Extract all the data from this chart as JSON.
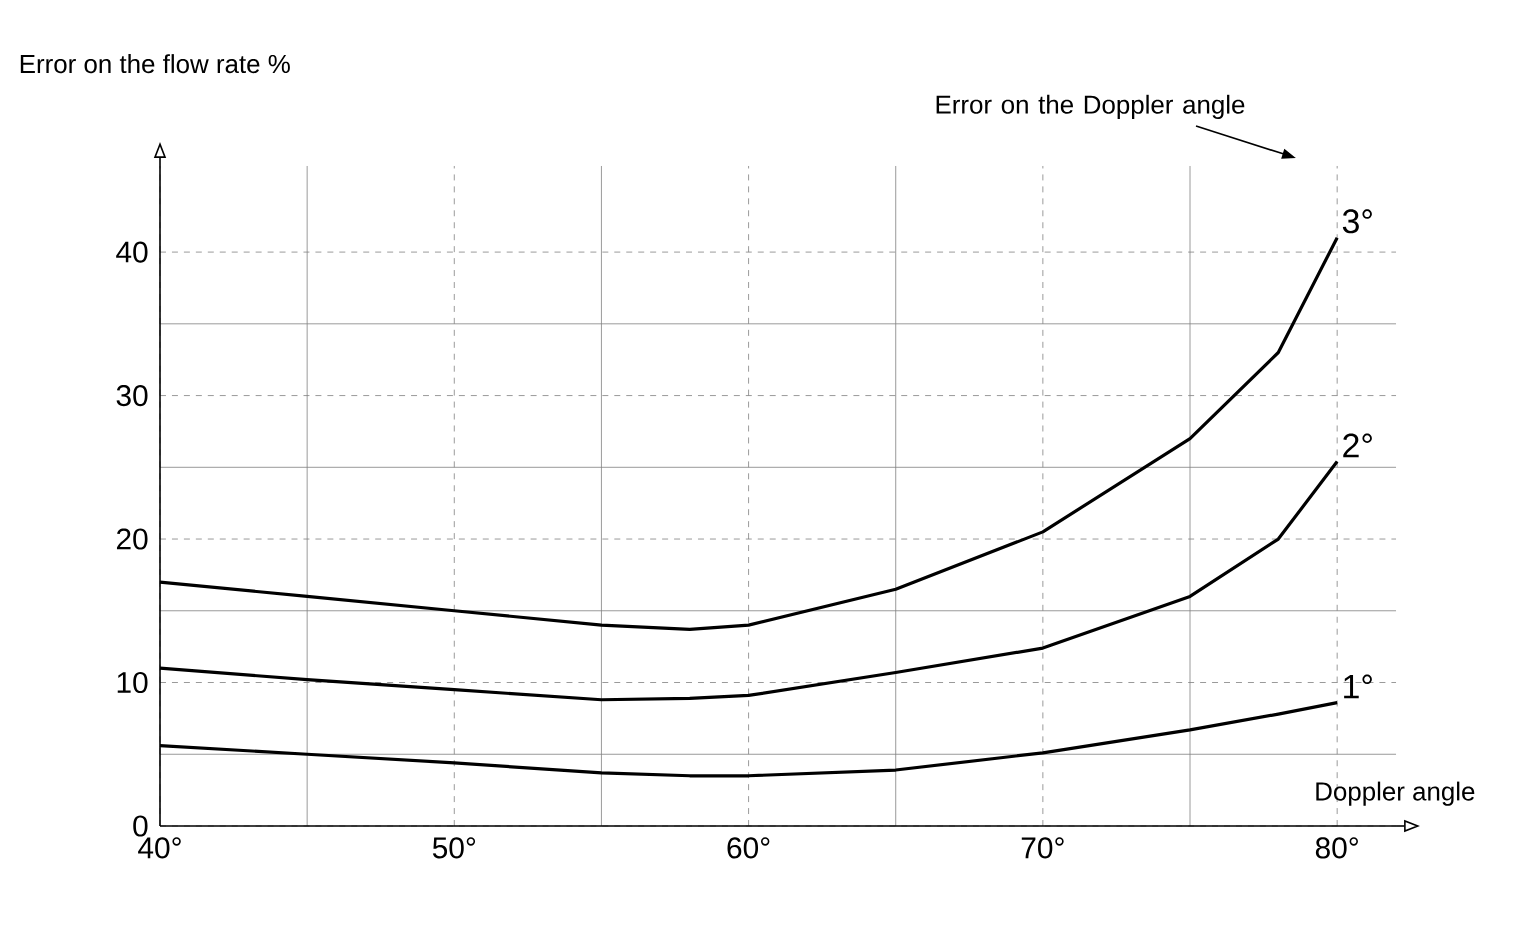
{
  "chart_data": {
    "type": "line",
    "ylabel": "Error on the flow rate %",
    "xlabel": "Doppler angle",
    "annotations": [
      "Error on the Doppler angle"
    ],
    "x": [
      40,
      45,
      50,
      55,
      58,
      60,
      65,
      70,
      75,
      78,
      80
    ],
    "series": [
      {
        "name": "3°",
        "color": "#000000",
        "values": [
          17,
          16,
          15,
          14,
          13.7,
          14,
          16.5,
          20.5,
          27,
          33,
          41
        ]
      },
      {
        "name": "2°",
        "color": "#000000",
        "values": [
          11,
          10.2,
          9.5,
          8.8,
          8.9,
          9.1,
          10.7,
          12.4,
          16,
          20,
          25.4
        ]
      },
      {
        "name": "1°",
        "color": "#000000",
        "values": [
          5.6,
          5,
          4.4,
          3.7,
          3.5,
          3.5,
          3.9,
          5.1,
          6.7,
          7.8,
          8.6
        ]
      }
    ],
    "xlim": [
      40,
      82
    ],
    "ylim": [
      0,
      46
    ],
    "xticks": [
      {
        "value": 40,
        "label": "40°"
      },
      {
        "value": 50,
        "label": "50°"
      },
      {
        "value": 60,
        "label": "60°"
      },
      {
        "value": 70,
        "label": "70°"
      },
      {
        "value": 80,
        "label": "80°"
      }
    ],
    "yticks": [
      0,
      10,
      20,
      30,
      40
    ],
    "grid": true,
    "legend": false,
    "marker": "none",
    "line_style": "solid"
  }
}
